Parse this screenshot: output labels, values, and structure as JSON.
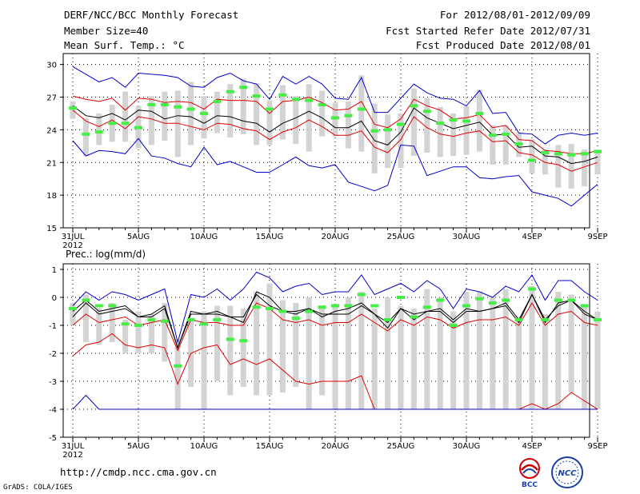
{
  "header": {
    "title": "DERF/NCC/BCC Monthly Forecast",
    "member_size": "Member Size=40",
    "variable": "Mean Surf. Temp.: °C",
    "period": "For 2012/08/01-2012/09/09",
    "refer_date": "Fcst Started Refer Date 2012/07/31",
    "produced_date": "Fcst Produced Date 2012/08/01"
  },
  "footer": {
    "url": "http://cmdp.ncc.cma.gov.cn",
    "credit": "GrADS: COLA/IGES",
    "logo1_text": "BCC",
    "logo2_text": "NCC"
  },
  "colors": {
    "max_min": "#0000cc",
    "spread": "#dd0000",
    "mean": "#000000",
    "box": "#d3d3d3",
    "marker": "#44ee44"
  },
  "chart_data": [
    {
      "type": "line",
      "title": "Mean Surf. Temp.: °C",
      "x_ticks": [
        "31JUL",
        "5AUG",
        "10AUG",
        "15AUG",
        "20AUG",
        "25AUG",
        "30AUG",
        "4SEP",
        "9SEP"
      ],
      "x_tick_days": [
        0,
        5,
        10,
        15,
        20,
        25,
        30,
        35,
        40
      ],
      "x_year_label": "2012",
      "y_ticks": [
        15,
        18,
        21,
        24,
        27,
        30
      ],
      "ylim": [
        15,
        31
      ],
      "grid": true,
      "series": [
        {
          "name": "max",
          "color": "blue",
          "values": [
            29.8,
            29.1,
            28.4,
            28.8,
            27.9,
            29.2,
            29.1,
            29.0,
            28.8,
            28.0,
            27.9,
            28.8,
            29.2,
            28.5,
            28.2,
            26.8,
            28.9,
            28.2,
            28.9,
            28.2,
            26.9,
            26.8,
            28.8,
            25.6,
            25.6,
            26.9,
            28.2,
            27.4,
            26.9,
            26.8,
            26.2,
            27.6,
            25.5,
            25.6,
            23.7,
            23.6,
            22.7,
            23.5,
            23.7,
            23.5,
            23.7
          ]
        },
        {
          "name": "upper",
          "color": "red",
          "values": [
            27.1,
            26.8,
            26.6,
            26.9,
            25.8,
            26.9,
            26.8,
            26.5,
            26.6,
            26.5,
            25.9,
            26.8,
            26.7,
            26.7,
            26.6,
            25.5,
            26.6,
            26.7,
            27.0,
            26.5,
            25.8,
            25.9,
            26.6,
            24.5,
            24.2,
            25.0,
            26.8,
            26.2,
            25.8,
            25.0,
            25.1,
            25.4,
            24.2,
            24.4,
            23.1,
            23.0,
            22.1,
            22.0,
            21.8,
            21.8,
            22.1
          ]
        },
        {
          "name": "mean",
          "color": "black",
          "values": [
            26.2,
            25.3,
            25.1,
            25.5,
            24.9,
            25.8,
            25.7,
            25.0,
            25.3,
            25.2,
            24.6,
            25.3,
            25.2,
            24.8,
            24.6,
            23.8,
            24.6,
            25.1,
            25.7,
            25.1,
            24.2,
            24.2,
            24.8,
            23.0,
            22.6,
            23.8,
            26.0,
            25.1,
            24.6,
            24.1,
            24.4,
            24.7,
            23.5,
            23.6,
            22.4,
            22.5,
            21.6,
            21.5,
            20.9,
            21.1,
            21.5
          ]
        },
        {
          "name": "lower",
          "color": "red",
          "values": [
            25.8,
            24.8,
            24.3,
            24.9,
            24.1,
            25.2,
            25.0,
            24.6,
            24.6,
            24.3,
            24.0,
            24.6,
            24.5,
            24.1,
            23.9,
            23.1,
            23.8,
            24.2,
            24.9,
            24.3,
            23.5,
            23.5,
            23.9,
            22.4,
            21.9,
            23.1,
            25.2,
            24.2,
            23.6,
            23.4,
            23.7,
            23.9,
            22.9,
            23.0,
            21.9,
            21.7,
            21.0,
            20.8,
            20.2,
            20.6,
            21.0
          ]
        },
        {
          "name": "min",
          "color": "blue",
          "values": [
            23.0,
            21.6,
            22.1,
            22.0,
            21.8,
            23.2,
            21.6,
            21.4,
            20.9,
            20.6,
            22.4,
            20.8,
            21.1,
            20.6,
            20.1,
            20.1,
            20.8,
            21.5,
            20.7,
            20.5,
            20.8,
            19.2,
            18.8,
            18.4,
            18.9,
            22.6,
            22.5,
            19.8,
            20.2,
            20.6,
            20.6,
            19.6,
            19.5,
            19.7,
            19.8,
            18.3,
            18.0,
            17.7,
            17.0,
            18.0,
            19.0
          ]
        }
      ],
      "boxes": [
        [
          25.0,
          26.6
        ],
        [
          21.6,
          25.1
        ],
        [
          22.6,
          25.5
        ],
        [
          22.9,
          26.3
        ],
        [
          22.9,
          27.5
        ],
        [
          22.3,
          26.2
        ],
        [
          22.6,
          27.1
        ],
        [
          23.0,
          27.5
        ],
        [
          21.5,
          27.6
        ],
        [
          22.6,
          28.4
        ],
        [
          23.2,
          27.1
        ],
        [
          23.7,
          27.5
        ],
        [
          23.3,
          28.2
        ],
        [
          23.6,
          28.7
        ],
        [
          22.6,
          28.3
        ],
        [
          22.6,
          26.7
        ],
        [
          23.1,
          28.1
        ],
        [
          22.7,
          27.1
        ],
        [
          22.0,
          28.2
        ],
        [
          23.4,
          27.6
        ],
        [
          23.4,
          26.5
        ],
        [
          22.3,
          26.6
        ],
        [
          22.0,
          29.0
        ],
        [
          20.0,
          26.4
        ],
        [
          20.5,
          25.4
        ],
        [
          20.5,
          25.5
        ],
        [
          21.6,
          27.8
        ],
        [
          21.9,
          26.9
        ],
        [
          21.5,
          26.1
        ],
        [
          21.6,
          25.5
        ],
        [
          21.7,
          26.2
        ],
        [
          22.0,
          27.7
        ],
        [
          20.8,
          24.4
        ],
        [
          20.8,
          24.4
        ],
        [
          21.5,
          23.7
        ],
        [
          20.0,
          23.1
        ],
        [
          19.9,
          22.2
        ],
        [
          18.7,
          22.6
        ],
        [
          18.6,
          22.7
        ],
        [
          18.8,
          22.2
        ],
        [
          19.9,
          22.2
        ]
      ],
      "markers": [
        26.0,
        23.6,
        23.8,
        24.6,
        24.6,
        24.2,
        26.3,
        26.3,
        26.1,
        25.9,
        25.5,
        26.6,
        27.5,
        27.9,
        27.1,
        25.9,
        27.2,
        26.8,
        26.7,
        26.3,
        25.1,
        25.3,
        25.9,
        23.9,
        24.0,
        24.5,
        26.2,
        25.7,
        24.6,
        24.9,
        24.8,
        25.5,
        23.5,
        23.6,
        22.7,
        21.2,
        21.9,
        21.8,
        21.7,
        21.8,
        22.0
      ]
    },
    {
      "type": "line",
      "title": "Prec.: log(mm/d)",
      "x_ticks": [
        "31JUL",
        "5AUG",
        "10AUG",
        "15AUG",
        "20AUG",
        "25AUG",
        "30AUG",
        "4SEP",
        "9SEP"
      ],
      "x_tick_days": [
        0,
        5,
        10,
        15,
        20,
        25,
        30,
        35,
        40
      ],
      "x_year_label": "2012",
      "y_ticks": [
        -5,
        -4,
        -3,
        -2,
        -1,
        0,
        1
      ],
      "ylim": [
        -5,
        1.2
      ],
      "grid": true,
      "series": [
        {
          "name": "max",
          "color": "blue",
          "values": [
            -0.3,
            0.2,
            -0.1,
            0.2,
            0.1,
            -0.1,
            0.1,
            0.3,
            -1.6,
            0.1,
            0.0,
            0.3,
            -0.1,
            0.3,
            0.9,
            0.7,
            0.2,
            0.4,
            0.5,
            0.1,
            0.2,
            0.2,
            0.8,
            0.1,
            0.3,
            0.5,
            0.2,
            0.6,
            0.3,
            -0.4,
            0.3,
            0.2,
            0.0,
            0.4,
            0.2,
            0.8,
            -0.1,
            0.6,
            0.6,
            0.2,
            -0.1
          ]
        },
        {
          "name": "upper",
          "color": "black",
          "values": [
            -0.7,
            -0.2,
            -0.6,
            -0.5,
            -0.4,
            -0.7,
            -0.6,
            -0.3,
            -1.8,
            -0.5,
            -0.6,
            -0.6,
            -0.7,
            -0.9,
            0.2,
            0.0,
            -0.5,
            -0.5,
            -0.4,
            -0.7,
            -0.5,
            -0.4,
            -0.2,
            -0.6,
            -0.9,
            -0.4,
            -0.6,
            -0.5,
            -0.4,
            -0.8,
            -0.4,
            -0.5,
            -0.4,
            -0.2,
            -0.8,
            0.1,
            -0.8,
            -0.3,
            -0.1,
            -0.6,
            -0.8
          ]
        },
        {
          "name": "mean",
          "color": "red",
          "values": [
            -1.0,
            -0.6,
            -0.9,
            -0.8,
            -0.7,
            -1.0,
            -0.9,
            -0.8,
            -1.9,
            -0.8,
            -0.9,
            -0.9,
            -1.0,
            -1.0,
            -0.2,
            -0.4,
            -0.8,
            -0.9,
            -0.8,
            -1.0,
            -0.9,
            -0.9,
            -0.6,
            -0.9,
            -1.2,
            -0.8,
            -1.0,
            -0.7,
            -0.8,
            -1.1,
            -0.9,
            -0.8,
            -0.8,
            -0.7,
            -1.0,
            -0.2,
            -1.0,
            -0.6,
            -0.5,
            -0.9,
            -1.0
          ]
        },
        {
          "name": "lower",
          "color": "red",
          "values": [
            -2.1,
            -1.7,
            -1.6,
            -1.3,
            -1.7,
            -1.8,
            -1.7,
            -1.8,
            -3.1,
            -2.0,
            -1.8,
            -1.7,
            -2.4,
            -2.2,
            -2.4,
            -2.2,
            -2.6,
            -3.0,
            -3.1,
            -3.0,
            -3.0,
            -3.0,
            -2.8,
            -4.0,
            -4.0,
            -4.0,
            -4.0,
            -4.0,
            -4.0,
            -4.0,
            -4.0,
            -4.0,
            -4.0,
            -4.0,
            -4.0,
            -3.8,
            -4.0,
            -3.8,
            -3.4,
            -3.7,
            -4.0
          ]
        },
        {
          "name": "min",
          "color": "blue",
          "values": [
            -4.0,
            -3.5,
            -4.0,
            -4.0,
            -4.0,
            -4.0,
            -4.0,
            -4.0,
            -4.0,
            -4.0,
            -4.0,
            -4.0,
            -4.0,
            -4.0,
            -4.0,
            -4.0,
            -4.0,
            -4.0,
            -4.0,
            -4.0,
            -4.0,
            -4.0,
            -4.0,
            -4.0,
            -4.0,
            -4.0,
            -4.0,
            -4.0,
            -4.0,
            -4.0,
            -4.0,
            -4.0,
            -4.0,
            -4.0,
            -4.0,
            -4.0,
            -4.0,
            -4.0,
            -4.0,
            -4.0,
            -4.0
          ]
        },
        {
          "name": "mean2",
          "color": "black",
          "values": [
            -0.5,
            -0.1,
            -0.5,
            -0.4,
            -0.3,
            -0.7,
            -0.7,
            -0.4,
            -1.8,
            -0.6,
            -0.6,
            -0.5,
            -0.7,
            -0.7,
            0.1,
            -0.3,
            -0.5,
            -0.6,
            -0.4,
            -0.6,
            -0.6,
            -0.6,
            -0.3,
            -0.6,
            -1.1,
            -0.4,
            -0.8,
            -0.5,
            -0.5,
            -0.9,
            -0.5,
            -0.5,
            -0.4,
            -0.3,
            -0.9,
            0.1,
            -0.9,
            -0.2,
            -0.1,
            -0.5,
            -0.8
          ]
        }
      ],
      "boxes": [
        [
          -1.0,
          -0.2
        ],
        [
          -1.6,
          0.1
        ],
        [
          -1.7,
          -0.4
        ],
        [
          -1.6,
          -0.2
        ],
        [
          -2.0,
          -0.8
        ],
        [
          -2.0,
          -0.5
        ],
        [
          -2.0,
          -0.6
        ],
        [
          -2.3,
          -0.2
        ],
        [
          -4.0,
          -1.5
        ],
        [
          -3.2,
          -0.8
        ],
        [
          -4.0,
          -0.5
        ],
        [
          -3.0,
          -0.3
        ],
        [
          -3.5,
          -0.3
        ],
        [
          -3.2,
          -0.4
        ],
        [
          -3.5,
          0.2
        ],
        [
          -3.5,
          0.5
        ],
        [
          -3.4,
          -0.1
        ],
        [
          -3.2,
          -0.2
        ],
        [
          -4.0,
          0.0
        ],
        [
          -3.5,
          -0.4
        ],
        [
          -4.0,
          -0.3
        ],
        [
          -4.0,
          0.0
        ],
        [
          -4.0,
          0.2
        ],
        [
          -4.0,
          -0.4
        ],
        [
          -4.0,
          0.0
        ],
        [
          -4.0,
          -0.3
        ],
        [
          -4.0,
          -0.4
        ],
        [
          -4.0,
          0.3
        ],
        [
          -4.0,
          0.0
        ],
        [
          -4.0,
          -0.5
        ],
        [
          -4.0,
          0.2
        ],
        [
          -4.0,
          0.2
        ],
        [
          -4.0,
          0.0
        ],
        [
          -4.0,
          0.3
        ],
        [
          -4.0,
          -0.7
        ],
        [
          -4.0,
          0.4
        ],
        [
          -4.0,
          -0.6
        ],
        [
          -4.0,
          0.2
        ],
        [
          -3.4,
          0.1
        ],
        [
          -4.0,
          -0.3
        ],
        [
          -4.0,
          -0.5
        ]
      ],
      "markers": [
        -0.4,
        -0.1,
        -0.3,
        -0.3,
        -0.95,
        -1.0,
        -0.8,
        -0.85,
        -2.45,
        -0.8,
        -0.95,
        -0.8,
        -1.5,
        -1.55,
        -0.35,
        -0.4,
        -0.5,
        -0.75,
        -0.5,
        -0.35,
        -0.3,
        -0.3,
        0.1,
        -0.3,
        -0.8,
        0.0,
        -0.7,
        -0.35,
        -0.1,
        -1.0,
        -0.3,
        -0.05,
        -0.2,
        -0.1,
        -0.8,
        0.3,
        -0.8,
        -0.1,
        -0.1,
        -0.3,
        -0.8
      ]
    }
  ]
}
